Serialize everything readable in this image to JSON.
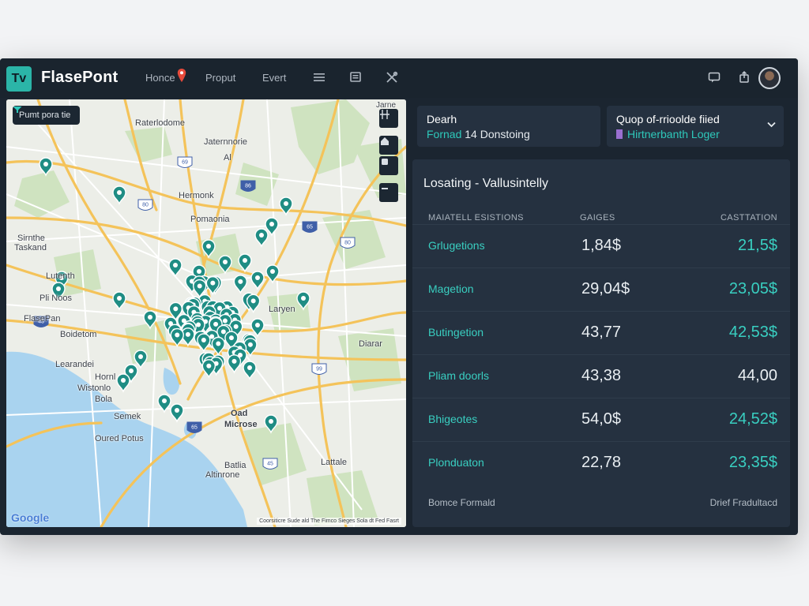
{
  "app": {
    "logo_text": "Tv",
    "title": "FlasePont",
    "nav": [
      "Honce",
      "Proput",
      "Evert"
    ],
    "accent_color": "#2bb5a8",
    "header_icons": [
      "menu-icon",
      "sheet-icon",
      "tools-icon",
      "chat-icon",
      "export-icon",
      "avatar"
    ]
  },
  "map": {
    "filter_chip": "Pumt pora tie",
    "controls": [
      "grid-icon",
      "home-icon",
      "layers-icon",
      "minus-icon"
    ],
    "labels": [
      "Raterlodome",
      "Jaternnorie",
      "Al",
      "Hermonk",
      "Pomaonia",
      "Sirnthe",
      "Taskand",
      "Lutenth",
      "Pli Noos",
      "FlasePan",
      "Boidetom",
      "Learandei",
      "Hornl",
      "Wistonlo",
      "Bola",
      "Semek",
      "Oured Potus",
      "Oad",
      "Microse",
      "Laryen",
      "Diarar",
      "Batlia",
      "Altinrone",
      "Lattale",
      "Jarne"
    ],
    "road_shields": [
      "69",
      "86",
      "80",
      "65",
      "80",
      "43",
      "99",
      "65",
      "45"
    ],
    "google_label": "Google",
    "attribution": "Coorsiticre  Sude ald  The Fimco  Sieges  Sola dt  Fed Fasrt",
    "pin_color": "#1f8d84"
  },
  "search_card": {
    "title": "Dearh",
    "subtitle_accent": "Fornad",
    "subtitle_rest": " 14 Donstoing"
  },
  "filter_card": {
    "title": "Quop of-rrioolde fiied",
    "subtitle": "Hirtnerbanth Loger"
  },
  "table": {
    "title": "Losating - Vallusintelly",
    "headers": [
      "MAIATELL ESISTIONS",
      "GAIGES",
      "CASTTATION"
    ],
    "rows": [
      {
        "name": "Grlugetions",
        "v1": "1,84$",
        "v2": "21,5$"
      },
      {
        "name": "Magetion",
        "v1": "29,04$",
        "v2": "23,05$"
      },
      {
        "name": "Butingetion",
        "v1": "43,77",
        "v2": "42,53$"
      },
      {
        "name": "Pliam doorls",
        "v1": "43,38",
        "v2": "44,00"
      },
      {
        "name": "Bhigeotes",
        "v1": "54,0$",
        "v2": "24,52$"
      },
      {
        "name": "Plonduaton",
        "v1": "22,78",
        "v2": "23,35$"
      }
    ],
    "footer_left": "Bomce Formald",
    "footer_right": "Drief Fradultacd"
  }
}
